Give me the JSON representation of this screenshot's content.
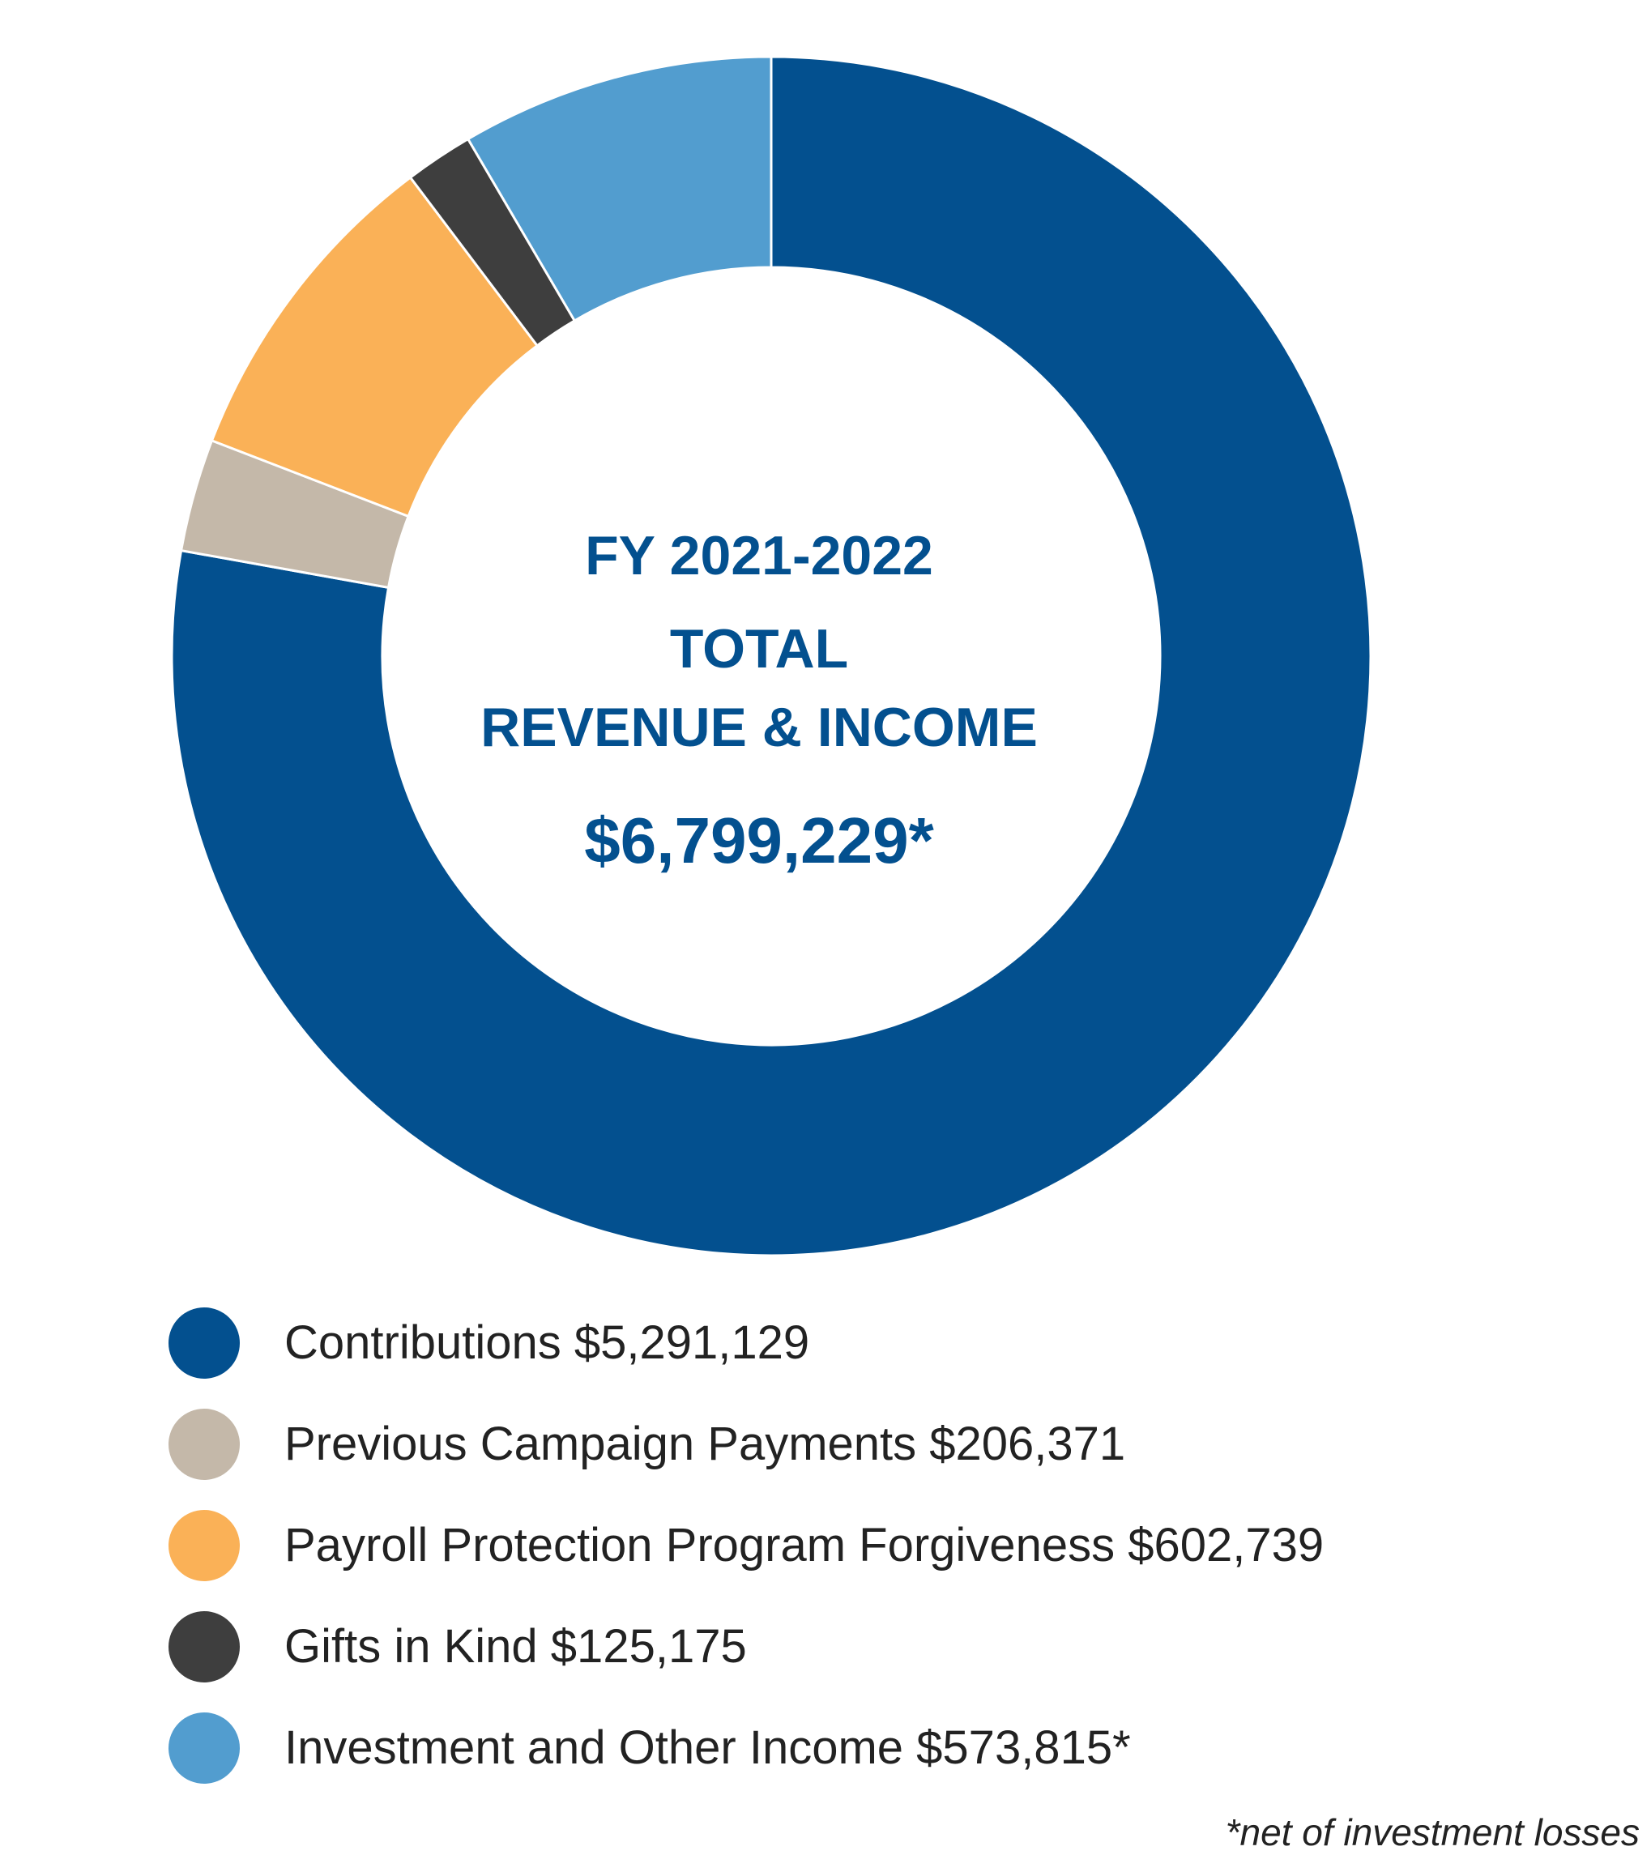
{
  "chart_data": {
    "type": "pie",
    "variant": "donut",
    "center_text": {
      "line1": "FY 2021-2022",
      "line2": "TOTAL",
      "line3": "REVENUE & INCOME",
      "total": "$6,799,229*"
    },
    "slices": [
      {
        "label": "Contributions",
        "value": 5291129,
        "display": "Contributions $5,291,129",
        "color": "#03508F"
      },
      {
        "label": "Previous Campaign Payments",
        "value": 206371,
        "display": "Previous Campaign Payments $206,371",
        "color": "#C4B8A9"
      },
      {
        "label": "Payroll Protection Program Forgiveness",
        "value": 602739,
        "display": "Payroll Protection Program Forgiveness $602,739",
        "color": "#FAB157"
      },
      {
        "label": "Gifts in Kind",
        "value": 125175,
        "display": "Gifts in Kind $125,175",
        "color": "#3E3E3E"
      },
      {
        "label": "Investment and Other Income",
        "value": 573815,
        "display": "Investment and Other Income $573,815*",
        "color": "#529DCF"
      }
    ],
    "legend_position": "bottom",
    "footnote": "*net of investment losses"
  }
}
